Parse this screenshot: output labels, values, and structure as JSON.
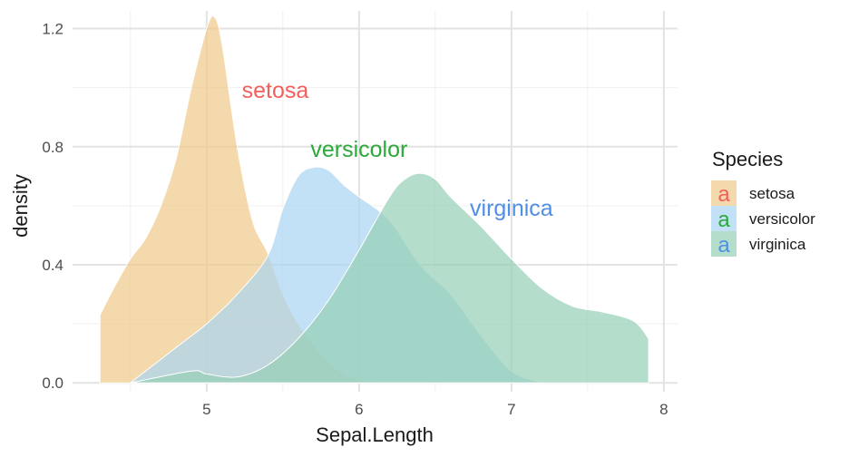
{
  "chart_data": {
    "type": "area",
    "title": "",
    "xlabel": "Sepal.Length",
    "ylabel": "density",
    "xlim": [
      4.12,
      8.09
    ],
    "ylim": [
      -0.03,
      1.26
    ],
    "x_ticks": [
      5,
      6,
      7,
      8
    ],
    "x_tick_labels": [
      "5",
      "6",
      "7",
      "8"
    ],
    "y_ticks": [
      0.0,
      0.4,
      0.8,
      1.2
    ],
    "y_tick_labels": [
      "0.0",
      "0.4",
      "0.8",
      "1.2"
    ],
    "grid": true,
    "legend": {
      "title": "Species",
      "placement": "right",
      "key_glyph": "a"
    },
    "series": [
      {
        "name": "setosa",
        "fill": "#F0C989",
        "label_color": "#F25F5C",
        "label_pos": [
          5.45,
          0.99
        ],
        "x": [
          4.3,
          4.4,
          4.5,
          4.6,
          4.7,
          4.8,
          4.9,
          5.0,
          5.05,
          5.1,
          5.2,
          5.3,
          5.4,
          5.5,
          5.6,
          5.7,
          5.8,
          5.9,
          6.0,
          6.1
        ],
        "y": [
          0.23,
          0.33,
          0.42,
          0.49,
          0.6,
          0.76,
          1.0,
          1.2,
          1.24,
          1.15,
          0.8,
          0.55,
          0.44,
          0.3,
          0.2,
          0.13,
          0.07,
          0.03,
          0.01,
          0.0
        ]
      },
      {
        "name": "versicolor",
        "fill": "#A9D4F2",
        "label_color": "#2AAA3A",
        "label_pos": [
          6.0,
          0.79
        ],
        "x": [
          4.5,
          4.8,
          5.0,
          5.2,
          5.4,
          5.5,
          5.6,
          5.7,
          5.8,
          5.9,
          6.0,
          6.2,
          6.4,
          6.6,
          6.8,
          7.0,
          7.2
        ],
        "y": [
          0.0,
          0.12,
          0.2,
          0.3,
          0.43,
          0.59,
          0.7,
          0.73,
          0.72,
          0.67,
          0.63,
          0.55,
          0.4,
          0.3,
          0.16,
          0.04,
          0.0
        ]
      },
      {
        "name": "virginica",
        "fill": "#96CFB5",
        "label_color": "#4F8FE6",
        "label_pos": [
          7.0,
          0.59
        ],
        "x": [
          4.5,
          4.9,
          5.0,
          5.2,
          5.4,
          5.6,
          5.8,
          6.0,
          6.2,
          6.3,
          6.4,
          6.5,
          6.6,
          6.8,
          7.0,
          7.2,
          7.4,
          7.6,
          7.8,
          7.9
        ],
        "y": [
          0.0,
          0.04,
          0.03,
          0.02,
          0.06,
          0.15,
          0.28,
          0.45,
          0.63,
          0.69,
          0.71,
          0.69,
          0.63,
          0.53,
          0.42,
          0.32,
          0.26,
          0.24,
          0.21,
          0.15
        ]
      }
    ]
  }
}
